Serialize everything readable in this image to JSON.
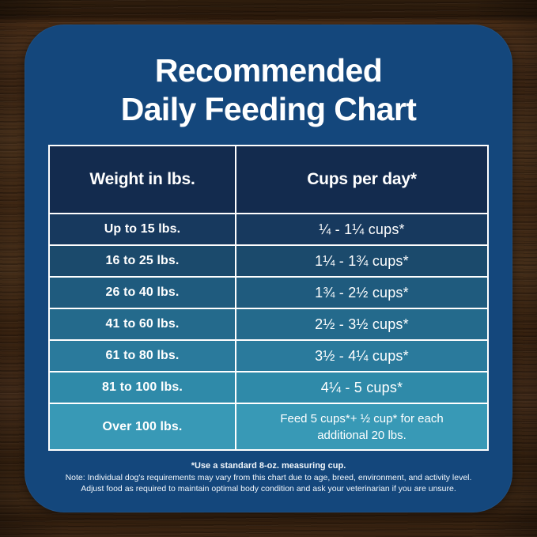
{
  "title": {
    "line1": "Recommended",
    "line2": "Daily Feeding Chart"
  },
  "table": {
    "header": {
      "weight": "Weight in lbs.",
      "cups": "Cups per day*"
    },
    "rows": [
      {
        "weight": "Up to 15 lbs.",
        "cups": "¼ - 1¼ cups*"
      },
      {
        "weight": "16 to 25 lbs.",
        "cups": "1¼ - 1¾ cups*"
      },
      {
        "weight": "26 to 40 lbs.",
        "cups": "1¾ - 2½ cups*"
      },
      {
        "weight": "41 to 60 lbs.",
        "cups": "2½ - 3½ cups*"
      },
      {
        "weight": "61 to 80 lbs.",
        "cups": "3½ - 4¼ cups*"
      },
      {
        "weight": "81 to 100 lbs.",
        "cups": "4¼ - 5 cups*"
      },
      {
        "weight": "Over 100 lbs.",
        "cups": "Feed 5 cups*+ ½ cup* for each additional 20 lbs.",
        "cups_line1": "Feed 5 cups*+ ½ cup* for each",
        "cups_line2": "additional 20 lbs."
      }
    ]
  },
  "footnotes": {
    "measuring_cup": "*Use a standard 8-oz. measuring cup.",
    "note_line1": "Note: Individual dog's requirements may vary from this chart due to age, breed, environment, and activity level.",
    "note_line2": "Adjust food as required to maintain optimal body condition and ask your veterinarian if you are unsure."
  },
  "colors": {
    "card_bg": "#14477c",
    "header_bg": "#132b4e",
    "table_border": "#ffffff",
    "text": "#ffffff",
    "row_colors": [
      "#17395e",
      "#1b4a6c",
      "#1f5b7e",
      "#246a8c",
      "#2a7a9c",
      "#2f8aa9",
      "#3899b6"
    ]
  },
  "chart_data": {
    "type": "table",
    "title": "Recommended Daily Feeding Chart",
    "columns": [
      "Weight in lbs.",
      "Cups per day*"
    ],
    "rows": [
      [
        "Up to 15 lbs.",
        "¼ - 1¼ cups*"
      ],
      [
        "16 to 25 lbs.",
        "1¼ - 1¾ cups*"
      ],
      [
        "26 to 40 lbs.",
        "1¾ - 2½ cups*"
      ],
      [
        "41 to 60 lbs.",
        "2½ - 3½ cups*"
      ],
      [
        "61 to 80 lbs.",
        "3½ - 4¼ cups*"
      ],
      [
        "81 to 100 lbs.",
        "4¼ - 5 cups*"
      ],
      [
        "Over 100 lbs.",
        "Feed 5 cups*+ ½ cup* for each additional 20 lbs."
      ]
    ],
    "footnote": "*Use a standard 8-oz. measuring cup."
  }
}
